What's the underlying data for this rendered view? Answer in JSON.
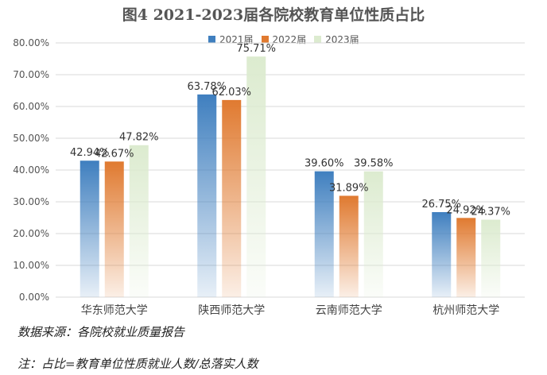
{
  "chart_data": {
    "type": "bar",
    "title": "图4 2021-2023届各院校教育单位性质占比",
    "categories": [
      "华东师范大学",
      "陕西师范大学",
      "云南师范大学",
      "杭州师范大学"
    ],
    "series": [
      {
        "name": "2021届",
        "values": [
          42.94,
          63.78,
          39.6,
          26.75
        ],
        "labels": [
          "42.94%",
          "63.78%",
          "39.60%",
          "26.75%"
        ],
        "color": "#3f7fbf"
      },
      {
        "name": "2022届",
        "values": [
          42.67,
          62.03,
          31.89,
          24.92
        ],
        "labels": [
          "42.67%",
          "62.03%",
          "31.89%",
          "24.92%"
        ],
        "color": "#e07a30"
      },
      {
        "name": "2023届",
        "values": [
          47.82,
          75.71,
          39.58,
          24.37
        ],
        "labels": [
          "47.82%",
          "75.71%",
          "39.58%",
          "24.37%"
        ],
        "color": "#dcebcf"
      }
    ],
    "ylim": [
      0,
      80
    ],
    "yticks": [
      "0.00%",
      "10.00%",
      "20.00%",
      "30.00%",
      "40.00%",
      "50.00%",
      "60.00%",
      "70.00%",
      "80.00%"
    ],
    "legend_position": "top-center"
  },
  "notes": {
    "source": "数据来源：各院校就业质量报告",
    "footnote": "注：占比=教育单位性质就业人数/总落实人数"
  }
}
